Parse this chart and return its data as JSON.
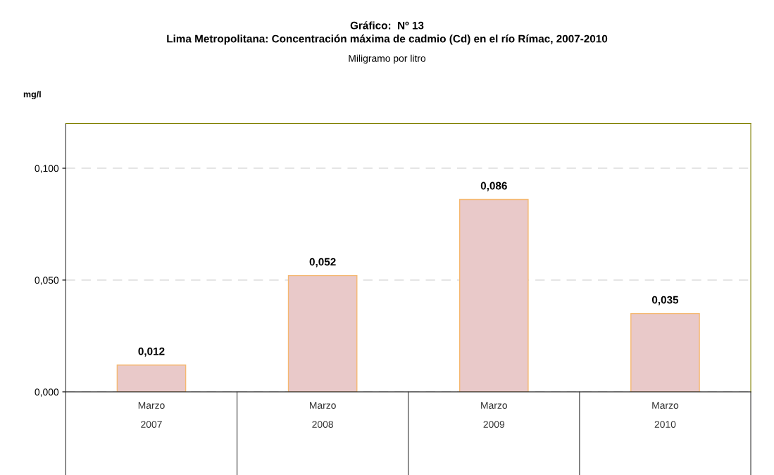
{
  "chart_data": {
    "type": "bar",
    "title": "Gráfico:  Nº 13\nLima Metropolitana: Concentración máxima de cadmio (Cd) en el río Rímac, 2007-2010",
    "subtitle": "Miligramo por litro",
    "ylabel": "mg/l",
    "categories": [
      "Marzo\n2007",
      "Marzo\n2008",
      "Marzo\n2009",
      "Marzo\n2010"
    ],
    "values": [
      0.012,
      0.052,
      0.086,
      0.035
    ],
    "color": "#e9c9c9",
    "value_labels": [
      "0,012",
      "0,052",
      "0,086",
      "0,035"
    ],
    "ylim": [
      0,
      0.12
    ],
    "yticks": [
      {
        "value": 0,
        "label": "0,000"
      },
      {
        "value": 0.05,
        "label": "0,050"
      },
      {
        "value": 0.1,
        "label": "0,100"
      }
    ],
    "grid": "y",
    "legend": false
  }
}
